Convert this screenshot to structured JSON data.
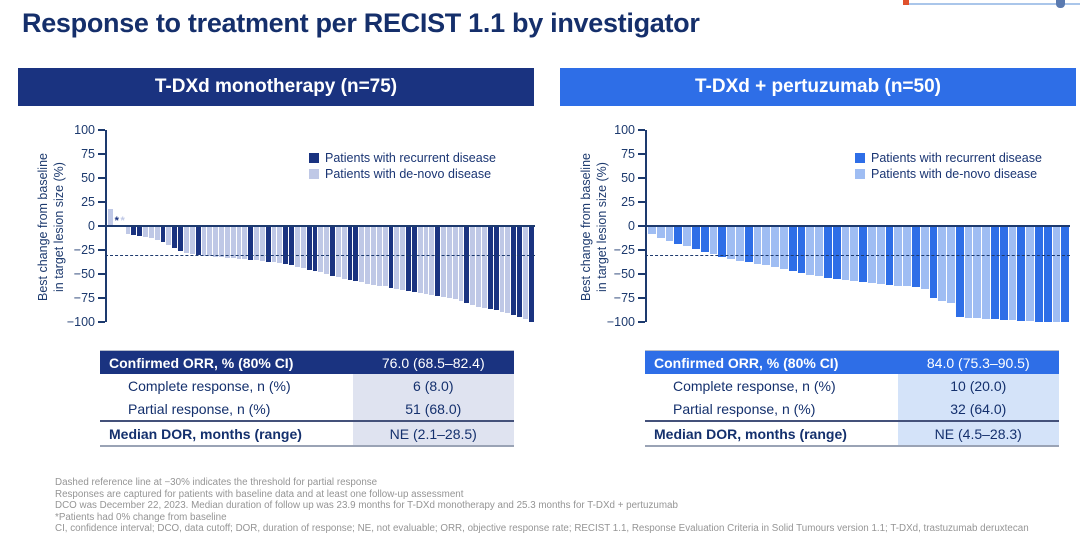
{
  "page_title": "Response to treatment per RECIST 1.1 by investigator",
  "chart_data": [
    {
      "type": "bar",
      "title": "T-DXd monotherapy (n=75)",
      "accent": "#1a3380",
      "ylabel": "Best change from baseline in target lesion size (%)",
      "ylabel_lines": [
        "Best change from baseline",
        "in target lesion size (%)"
      ],
      "ylim": [
        -100,
        100
      ],
      "y_ticks": [
        100,
        75,
        50,
        25,
        0,
        -25,
        -50,
        -75,
        -100
      ],
      "reference_line": -30,
      "grid": false,
      "legend_position": "upper right",
      "legend": [
        "Patients with recurrent disease",
        "Patients with de-novo disease"
      ],
      "colors": {
        "recurrent": "#1a3380",
        "denovo": "#bfc8e6"
      },
      "zero_marker_note": "* = patient with 0% change from baseline",
      "bars": [
        {
          "v": 18,
          "g": "denovo"
        },
        {
          "v": 0,
          "g": "recurrent",
          "marker": true
        },
        {
          "v": 0,
          "g": "denovo",
          "marker": true
        },
        {
          "v": -8,
          "g": "denovo"
        },
        {
          "v": -9,
          "g": "recurrent"
        },
        {
          "v": -10,
          "g": "recurrent"
        },
        {
          "v": -11,
          "g": "denovo"
        },
        {
          "v": -13,
          "g": "denovo"
        },
        {
          "v": -15,
          "g": "denovo"
        },
        {
          "v": -17,
          "g": "recurrent"
        },
        {
          "v": -20,
          "g": "denovo"
        },
        {
          "v": -23,
          "g": "recurrent"
        },
        {
          "v": -26,
          "g": "recurrent"
        },
        {
          "v": -28,
          "g": "denovo"
        },
        {
          "v": -29,
          "g": "denovo"
        },
        {
          "v": -30,
          "g": "recurrent"
        },
        {
          "v": -31,
          "g": "denovo"
        },
        {
          "v": -31,
          "g": "denovo"
        },
        {
          "v": -32,
          "g": "denovo"
        },
        {
          "v": -32,
          "g": "denovo"
        },
        {
          "v": -33,
          "g": "denovo"
        },
        {
          "v": -33,
          "g": "denovo"
        },
        {
          "v": -34,
          "g": "denovo"
        },
        {
          "v": -34,
          "g": "denovo"
        },
        {
          "v": -35,
          "g": "recurrent"
        },
        {
          "v": -35,
          "g": "denovo"
        },
        {
          "v": -36,
          "g": "denovo"
        },
        {
          "v": -37,
          "g": "recurrent"
        },
        {
          "v": -38,
          "g": "denovo"
        },
        {
          "v": -39,
          "g": "denovo"
        },
        {
          "v": -40,
          "g": "recurrent"
        },
        {
          "v": -41,
          "g": "recurrent"
        },
        {
          "v": -43,
          "g": "denovo"
        },
        {
          "v": -44,
          "g": "denovo"
        },
        {
          "v": -46,
          "g": "recurrent"
        },
        {
          "v": -47,
          "g": "recurrent"
        },
        {
          "v": -48,
          "g": "denovo"
        },
        {
          "v": -50,
          "g": "denovo"
        },
        {
          "v": -52,
          "g": "recurrent"
        },
        {
          "v": -53,
          "g": "denovo"
        },
        {
          "v": -55,
          "g": "denovo"
        },
        {
          "v": -56,
          "g": "recurrent"
        },
        {
          "v": -57,
          "g": "recurrent"
        },
        {
          "v": -58,
          "g": "denovo"
        },
        {
          "v": -60,
          "g": "denovo"
        },
        {
          "v": -61,
          "g": "denovo"
        },
        {
          "v": -62,
          "g": "denovo"
        },
        {
          "v": -63,
          "g": "denovo"
        },
        {
          "v": -65,
          "g": "recurrent"
        },
        {
          "v": -66,
          "g": "denovo"
        },
        {
          "v": -67,
          "g": "denovo"
        },
        {
          "v": -68,
          "g": "recurrent"
        },
        {
          "v": -69,
          "g": "recurrent"
        },
        {
          "v": -70,
          "g": "denovo"
        },
        {
          "v": -71,
          "g": "denovo"
        },
        {
          "v": -72,
          "g": "denovo"
        },
        {
          "v": -73,
          "g": "recurrent"
        },
        {
          "v": -74,
          "g": "denovo"
        },
        {
          "v": -75,
          "g": "denovo"
        },
        {
          "v": -76,
          "g": "denovo"
        },
        {
          "v": -78,
          "g": "denovo"
        },
        {
          "v": -80,
          "g": "recurrent"
        },
        {
          "v": -82,
          "g": "denovo"
        },
        {
          "v": -84,
          "g": "denovo"
        },
        {
          "v": -85,
          "g": "denovo"
        },
        {
          "v": -86,
          "g": "recurrent"
        },
        {
          "v": -88,
          "g": "recurrent"
        },
        {
          "v": -90,
          "g": "denovo"
        },
        {
          "v": -91,
          "g": "denovo"
        },
        {
          "v": -93,
          "g": "recurrent"
        },
        {
          "v": -95,
          "g": "recurrent"
        },
        {
          "v": -97,
          "g": "denovo"
        },
        {
          "v": -100,
          "g": "recurrent"
        }
      ]
    },
    {
      "type": "bar",
      "title": "T-DXd + pertuzumab (n=50)",
      "accent": "#2e6ee7",
      "ylabel": "Best change from baseline in target lesion size (%)",
      "ylabel_lines": [
        "Best change from baseline",
        "in target lesion size (%)"
      ],
      "ylim": [
        -100,
        100
      ],
      "y_ticks": [
        100,
        75,
        50,
        25,
        0,
        -25,
        -50,
        -75,
        -100
      ],
      "reference_line": -30,
      "grid": false,
      "legend_position": "upper right",
      "legend": [
        "Patients with recurrent disease",
        "Patients with de-novo disease"
      ],
      "colors": {
        "recurrent": "#2e6ee7",
        "denovo": "#9fbdf3"
      },
      "bars": [
        {
          "v": -8,
          "g": "denovo"
        },
        {
          "v": -13,
          "g": "denovo"
        },
        {
          "v": -16,
          "g": "denovo"
        },
        {
          "v": -19,
          "g": "recurrent"
        },
        {
          "v": -21,
          "g": "denovo"
        },
        {
          "v": -24,
          "g": "recurrent"
        },
        {
          "v": -27,
          "g": "recurrent"
        },
        {
          "v": -29,
          "g": "denovo"
        },
        {
          "v": -32,
          "g": "recurrent"
        },
        {
          "v": -34,
          "g": "denovo"
        },
        {
          "v": -36,
          "g": "denovo"
        },
        {
          "v": -38,
          "g": "recurrent"
        },
        {
          "v": -40,
          "g": "denovo"
        },
        {
          "v": -41,
          "g": "denovo"
        },
        {
          "v": -43,
          "g": "denovo"
        },
        {
          "v": -45,
          "g": "denovo"
        },
        {
          "v": -47,
          "g": "recurrent"
        },
        {
          "v": -49,
          "g": "recurrent"
        },
        {
          "v": -51,
          "g": "denovo"
        },
        {
          "v": -52,
          "g": "denovo"
        },
        {
          "v": -54,
          "g": "recurrent"
        },
        {
          "v": -55,
          "g": "recurrent"
        },
        {
          "v": -56,
          "g": "denovo"
        },
        {
          "v": -57,
          "g": "denovo"
        },
        {
          "v": -58,
          "g": "recurrent"
        },
        {
          "v": -59,
          "g": "denovo"
        },
        {
          "v": -60,
          "g": "denovo"
        },
        {
          "v": -61,
          "g": "recurrent"
        },
        {
          "v": -62,
          "g": "denovo"
        },
        {
          "v": -63,
          "g": "denovo"
        },
        {
          "v": -64,
          "g": "recurrent"
        },
        {
          "v": -66,
          "g": "denovo"
        },
        {
          "v": -75,
          "g": "recurrent"
        },
        {
          "v": -78,
          "g": "denovo"
        },
        {
          "v": -80,
          "g": "denovo"
        },
        {
          "v": -95,
          "g": "recurrent"
        },
        {
          "v": -96,
          "g": "denovo"
        },
        {
          "v": -96,
          "g": "denovo"
        },
        {
          "v": -97,
          "g": "denovo"
        },
        {
          "v": -97,
          "g": "recurrent"
        },
        {
          "v": -98,
          "g": "recurrent"
        },
        {
          "v": -98,
          "g": "denovo"
        },
        {
          "v": -99,
          "g": "recurrent"
        },
        {
          "v": -99,
          "g": "denovo"
        },
        {
          "v": -100,
          "g": "recurrent"
        },
        {
          "v": -100,
          "g": "recurrent"
        },
        {
          "v": -100,
          "g": "denovo"
        },
        {
          "v": -100,
          "g": "recurrent"
        }
      ]
    }
  ],
  "tables": [
    {
      "value_bg": "#dfe3f0",
      "rows": [
        {
          "label": "Confirmed ORR, % (80% CI)",
          "value": "76.0 (68.5–82.4)"
        },
        {
          "label": "Complete response, n (%)",
          "value": "6 (8.0)"
        },
        {
          "label": "Partial response, n (%)",
          "value": "51 (68.0)"
        },
        {
          "label": "Median DOR, months (range)",
          "value": "NE (2.1–28.5)"
        }
      ]
    },
    {
      "value_bg": "#d4e3f9",
      "rows": [
        {
          "label": "Confirmed ORR, % (80% CI)",
          "value": "84.0 (75.3–90.5)"
        },
        {
          "label": "Complete response, n (%)",
          "value": "10 (20.0)"
        },
        {
          "label": "Partial response, n (%)",
          "value": "32 (64.0)"
        },
        {
          "label": "Median DOR, months (range)",
          "value": "NE (4.5–28.3)"
        }
      ]
    }
  ],
  "footnotes": [
    "Dashed reference line at −30% indicates the threshold for partial response",
    "Responses are captured for patients with baseline data and at least one follow-up assessment",
    "DCO was December 22, 2023. Median duration of follow up was 23.9 months for T-DXd monotherapy and 25.3 months for T-DXd + pertuzumab",
    "*Patients had 0% change from baseline",
    "CI, confidence interval; DCO, data cutoff; DOR, duration of response; NE, not evaluable; ORR, objective response rate; RECIST 1.1, Response Evaluation Criteria in Solid Tumours version 1.1; T-DXd, trastuzumab deruxtecan"
  ]
}
